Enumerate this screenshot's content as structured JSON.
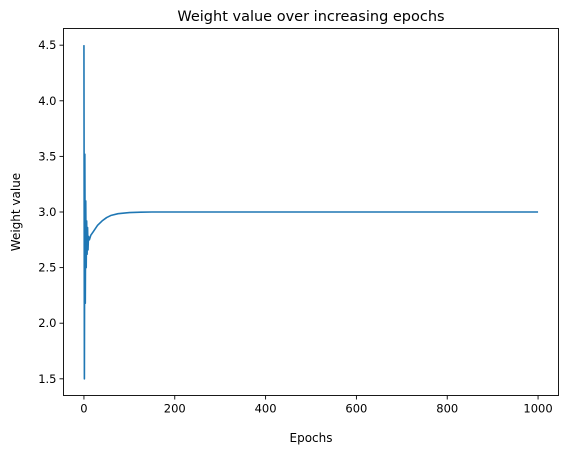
{
  "chart_data": {
    "type": "line",
    "title": "Weight value over increasing epochs",
    "xlabel": "Epochs",
    "ylabel": "Weight value",
    "xlim": [
      -45,
      1045
    ],
    "ylim": [
      1.35,
      4.65
    ],
    "xticks": [
      0,
      200,
      400,
      600,
      800,
      1000
    ],
    "xtick_labels": [
      "0",
      "200",
      "400",
      "600",
      "800",
      "1000"
    ],
    "yticks": [
      1.5,
      2.0,
      2.5,
      3.0,
      3.5,
      4.0,
      4.5
    ],
    "ytick_labels": [
      "1.5",
      "2.0",
      "2.5",
      "3.0",
      "3.5",
      "4.0",
      "4.5"
    ],
    "grid": false,
    "legend": "none",
    "series": [
      {
        "color": "#1f77b4",
        "x": [
          0,
          1,
          2,
          3,
          4,
          5,
          6,
          7,
          8,
          9,
          10,
          12,
          15,
          20,
          25,
          30,
          40,
          50,
          60,
          75,
          100,
          125,
          150,
          200,
          300,
          400,
          500,
          600,
          700,
          800,
          900,
          1000
        ],
        "y": [
          4.5,
          1.5,
          3.52,
          2.18,
          3.1,
          2.5,
          2.92,
          2.62,
          2.86,
          2.66,
          2.78,
          2.75,
          2.79,
          2.82,
          2.85,
          2.88,
          2.92,
          2.95,
          2.97,
          2.985,
          2.995,
          2.998,
          3.0,
          3.0,
          3.0,
          3.0,
          3.0,
          3.0,
          3.0,
          3.0,
          3.0,
          3.0
        ]
      }
    ]
  }
}
